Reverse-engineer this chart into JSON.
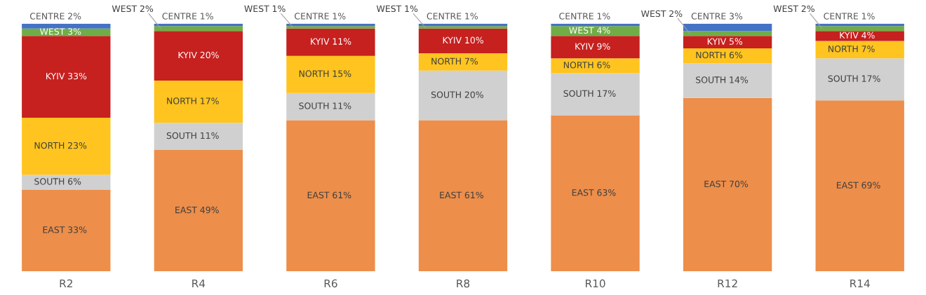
{
  "chart_data": {
    "type": "bar",
    "stacked": true,
    "categories": [
      "R2",
      "R4",
      "R6",
      "R8",
      "R10",
      "R12",
      "R14"
    ],
    "series": [
      {
        "name": "EAST",
        "color": "#ed8e4a",
        "values": [
          33,
          49,
          61,
          61,
          63,
          70,
          69
        ],
        "value_labels": [
          "33%",
          "49%",
          "61%",
          "61%",
          "63%",
          "70%",
          "69%"
        ]
      },
      {
        "name": "SOUTH",
        "color": "#d0d0d0",
        "values": [
          6,
          11,
          11,
          20,
          17,
          14,
          17
        ],
        "value_labels": [
          "6%",
          "11%",
          "11%",
          "20%",
          "17%",
          "14%",
          "17%"
        ]
      },
      {
        "name": "NORTH",
        "color": "#ffc41f",
        "values": [
          23,
          17,
          15,
          7,
          6,
          6,
          7
        ],
        "value_labels": [
          "23%",
          "17%",
          "15%",
          "7%",
          "6%",
          "6%",
          "7%"
        ]
      },
      {
        "name": "KYIV",
        "color": "#c6201f",
        "values": [
          33,
          20,
          11,
          10,
          9,
          5,
          4
        ],
        "value_labels": [
          "33%",
          "20%",
          "11%",
          "10%",
          "9%",
          "5%",
          "4%"
        ]
      },
      {
        "name": "WEST",
        "color": "#70ad47",
        "values": [
          3,
          2,
          1,
          1,
          4,
          2,
          2
        ],
        "value_labels": [
          "3%",
          "2%",
          "1%",
          "1%",
          "4%",
          "2%",
          "2%"
        ]
      },
      {
        "name": "CENTRE",
        "color": "#4472c4",
        "values": [
          2,
          1,
          1,
          1,
          1,
          3,
          1
        ],
        "value_labels": [
          "2%",
          "1%",
          "1%",
          "1%",
          "1%",
          "3%",
          "1%"
        ]
      }
    ],
    "tick_labels": "x"
  }
}
